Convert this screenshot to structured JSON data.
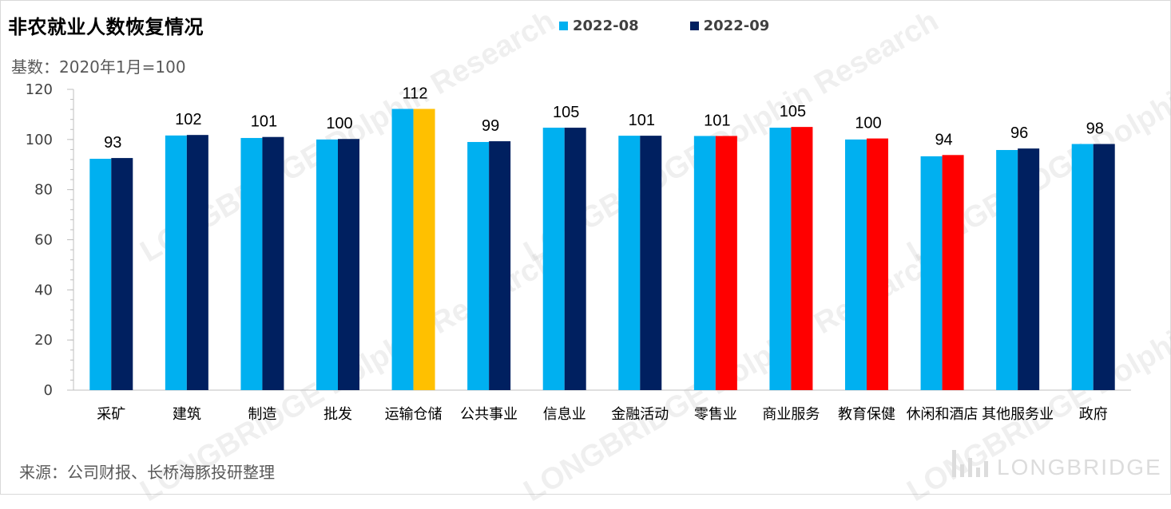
{
  "title": "非农就业人数恢复情况",
  "subtitle": "基数：2020年1月=100",
  "source": "来源：公司财报、长桥海豚投研整理",
  "logo": "LONGBRIDGE",
  "colors": {
    "series_a": "#00b0f0",
    "series_b": "#002060",
    "highlight_orange": "#ffc000",
    "highlight_red": "#ff0000"
  },
  "chart_data": {
    "type": "bar",
    "categories": [
      "采矿",
      "建筑",
      "制造",
      "批发",
      "运输仓储",
      "公共事业",
      "信息业",
      "金融活动",
      "零售业",
      "商业服务",
      "教育保健",
      "休闲和酒店",
      "其他服务业",
      "政府"
    ],
    "series": [
      {
        "name": "2022-08",
        "values": [
          92.3,
          101.6,
          100.6,
          100.0,
          112.2,
          99.0,
          104.7,
          101.5,
          101.4,
          104.7,
          100.0,
          93.3,
          95.8,
          98.2
        ],
        "color": "#00b0f0"
      },
      {
        "name": "2022-09",
        "values": [
          92.6,
          101.8,
          101.0,
          100.2,
          112.2,
          99.3,
          104.7,
          101.5,
          101.4,
          105.0,
          100.4,
          93.8,
          96.4,
          98.2
        ],
        "color": "#002060"
      }
    ],
    "series_b_colors": [
      "#002060",
      "#002060",
      "#002060",
      "#002060",
      "#ffc000",
      "#002060",
      "#002060",
      "#002060",
      "#ff0000",
      "#ff0000",
      "#ff0000",
      "#ff0000",
      "#002060",
      "#002060"
    ],
    "data_labels": [
      "93",
      "102",
      "101",
      "100",
      "112",
      "99",
      "105",
      "101",
      "101",
      "105",
      "100",
      "94",
      "96",
      "98"
    ],
    "yticks": [
      "0",
      "20",
      "40",
      "60",
      "80",
      "100",
      "120"
    ],
    "ylim": [
      0,
      120
    ],
    "legend": "top"
  }
}
